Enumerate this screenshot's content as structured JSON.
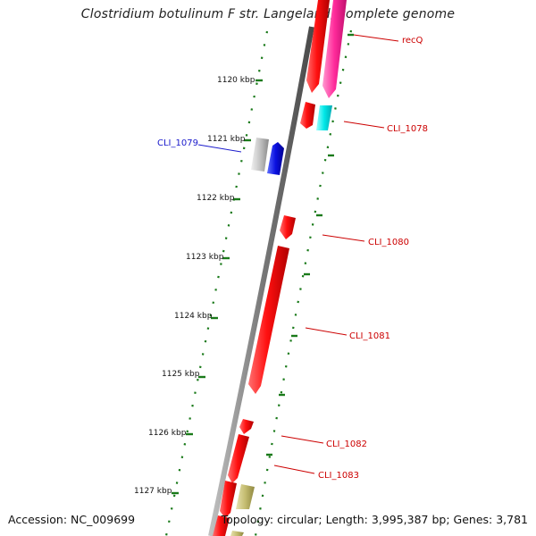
{
  "title": "Clostridium botulinum F str. Langeland, complete genome",
  "accession": "Accession: NC_009699",
  "summary": "Topology: circular; Length: 3,995,387 bp; Genes: 3,781",
  "ticks": [
    "1120 kbp",
    "1121 kbp",
    "1122 kbp",
    "1123 kbp",
    "1124 kbp",
    "1125 kbp",
    "1126 kbp",
    "1127 kbp"
  ],
  "genes": [
    {
      "label": "recQ",
      "strand": "forward",
      "color": "#dd0000"
    },
    {
      "label": "CLI_1078",
      "strand": "forward",
      "color": "#dd0000"
    },
    {
      "label": "CLI_1079",
      "strand": "reverse",
      "color": "#0000cc"
    },
    {
      "label": "CLI_1080",
      "strand": "forward",
      "color": "#dd0000"
    },
    {
      "label": "CLI_1081",
      "strand": "forward",
      "color": "#dd0000"
    },
    {
      "label": "CLI_1082",
      "strand": "forward",
      "color": "#dd0000"
    },
    {
      "label": "CLI_1083",
      "strand": "forward",
      "color": "#dd0000"
    }
  ],
  "colors": {
    "cds_red": "#ff1a1a",
    "cds_pink": "#ff3fa8",
    "cds_cyan": "#00e5e5",
    "cds_blue": "#0a14e0",
    "cds_grey": "#c8c8c8",
    "cds_khaki": "#c8c07a",
    "backbone": "#888888",
    "tick_green": "#1a7a1a"
  }
}
